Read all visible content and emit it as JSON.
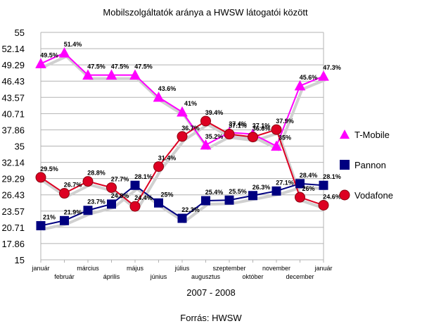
{
  "chart_data": {
    "type": "line",
    "title": "Mobilszolgáltatók aránya a HWSW látogatói között",
    "xlabel": "2007 - 2008",
    "source": "Forrás: HWSW",
    "ylim": [
      15,
      55
    ],
    "ytick_labels": [
      "15",
      "17.86",
      "20.71",
      "23.57",
      "26.43",
      "29.29",
      "32.14",
      "35",
      "37.86",
      "40.71",
      "43.57",
      "46.43",
      "49.29",
      "52.14",
      "55"
    ],
    "categories": [
      "január",
      "február",
      "március",
      "április",
      "május",
      "június",
      "július",
      "augusztus",
      "szeptember",
      "október",
      "november",
      "december",
      "január"
    ],
    "grid": true,
    "legend_position": "right",
    "series": [
      {
        "name": "T-Mobile",
        "marker": "triangle",
        "color": "#ff00ff",
        "values": [
          49.5,
          51.4,
          47.5,
          47.5,
          47.5,
          43.6,
          41,
          35.2,
          37.4,
          37.1,
          35,
          45.6,
          47.3
        ],
        "labels": [
          "49.5%",
          "51.4%",
          "47.5%",
          "47.5%",
          "47.5%",
          "43.6%",
          "41%",
          "35.2%",
          "37.4%",
          "37.1%",
          "35%",
          "45.6%",
          "47.3%"
        ]
      },
      {
        "name": "Pannon",
        "marker": "square",
        "color": "#000080",
        "values": [
          21,
          21.9,
          23.7,
          24.8,
          28.1,
          25,
          22.3,
          25.4,
          25.5,
          26.3,
          27.1,
          28.4,
          28.1
        ],
        "labels": [
          "21%",
          "21.9%",
          "23.7%",
          "24.8%",
          "28.1%",
          "25%",
          "22.3%",
          "25.4%",
          "25.5%",
          "26.3%",
          "27.1%",
          "28.4%",
          "28.1%"
        ]
      },
      {
        "name": "Vodafone",
        "marker": "circle",
        "color": "#dd0022",
        "values": [
          29.5,
          26.7,
          28.8,
          27.7,
          24.4,
          31.4,
          36.7,
          39.4,
          37.1,
          36.6,
          37.9,
          26,
          24.6
        ],
        "labels": [
          "29.5%",
          "26.7%",
          "28.8%",
          "27.7%",
          "24.4%",
          "31.4%",
          "36.7%",
          "39.4%",
          "37.1%",
          "36.6%",
          "37.9%",
          "26%",
          "24.6%"
        ]
      }
    ]
  }
}
